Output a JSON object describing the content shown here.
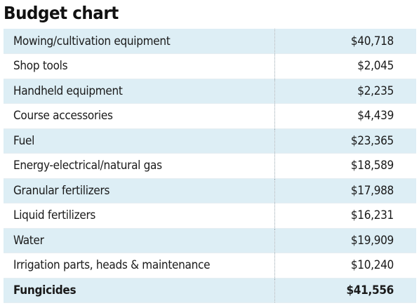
{
  "title": "Budget chart",
  "chart_data": {
    "type": "table",
    "title": "Budget chart",
    "rows": [
      {
        "item": "Mowing/cultivation equipment",
        "amount": "$40,718",
        "value": 40718
      },
      {
        "item": "Shop tools",
        "amount": "$2,045",
        "value": 2045
      },
      {
        "item": "Handheld equipment",
        "amount": "$2,235",
        "value": 2235
      },
      {
        "item": "Course accessories",
        "amount": "$4,439",
        "value": 4439
      },
      {
        "item": "Fuel",
        "amount": "$23,365",
        "value": 23365
      },
      {
        "item": "Energy-electrical/natural gas",
        "amount": "$18,589",
        "value": 18589
      },
      {
        "item": "Granular fertilizers",
        "amount": "$17,988",
        "value": 17988
      },
      {
        "item": "Liquid fertilizers",
        "amount": "$16,231",
        "value": 16231
      },
      {
        "item": "Water",
        "amount": "$19,909",
        "value": 19909
      },
      {
        "item": "Irrigation parts, heads & maintenance",
        "amount": "$10,240",
        "value": 10240
      },
      {
        "item": "Fungicides",
        "amount": "$41,556",
        "value": 41556
      }
    ]
  },
  "colors": {
    "row_shade": "#ddeef5",
    "text": "#1a1a1a"
  }
}
